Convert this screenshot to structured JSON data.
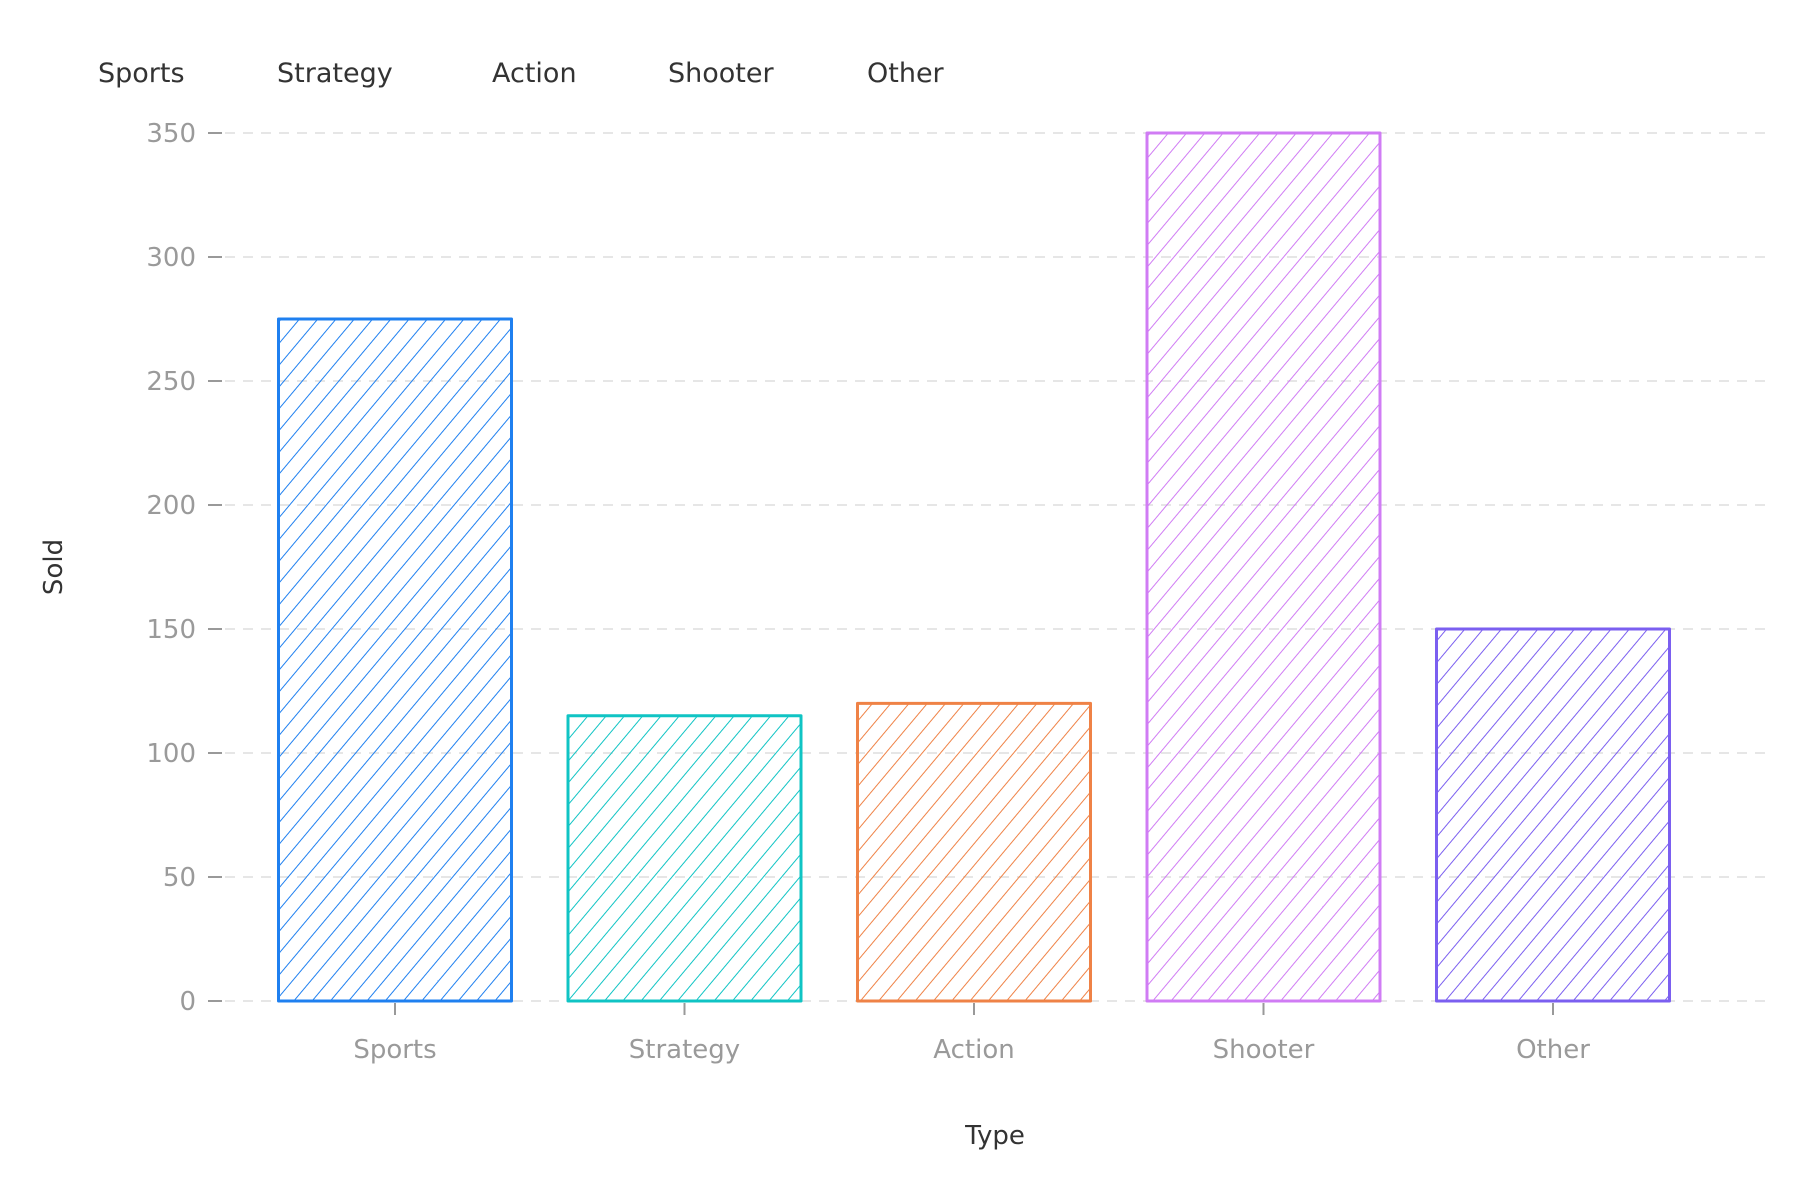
{
  "chart_data": {
    "type": "bar",
    "title": "",
    "xlabel": "Type",
    "ylabel": "Sold",
    "categories": [
      "Sports",
      "Strategy",
      "Action",
      "Shooter",
      "Other"
    ],
    "values": [
      275,
      115,
      120,
      350,
      150
    ],
    "colors": [
      "#1f80f0",
      "#10c4c4",
      "#ef8246",
      "#d07cf4",
      "#7b5ff0"
    ],
    "ylim": [
      0,
      350
    ],
    "yticks": [
      0,
      50,
      100,
      150,
      200,
      250,
      300,
      350
    ],
    "grid": true,
    "legend_position": "top-left",
    "style": "hand-drawn hatched"
  }
}
